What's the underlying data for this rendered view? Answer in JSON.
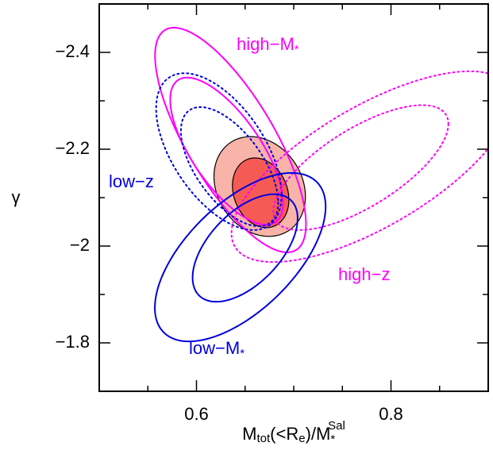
{
  "chart_data": {
    "type": "ellipse",
    "ylabel": "γ",
    "xlabel": [
      "M",
      "tot",
      "(<R",
      "e",
      ")/M",
      "*",
      "Sal"
    ],
    "xlim": [
      0.5,
      0.9
    ],
    "xticks": [
      0.6,
      0.8
    ],
    "xminorticks": [
      0.55,
      0.65,
      0.7,
      0.75,
      0.85
    ],
    "ylim": [
      -2.5,
      -1.7
    ],
    "yticks": [
      {
        "value": -2.4,
        "label": "−2.4"
      },
      {
        "value": -2.2,
        "label": "−2.2"
      },
      {
        "value": -2,
        "label": "−2"
      },
      {
        "value": -1.8,
        "label": "−1.8"
      }
    ],
    "yminorticks": [
      -2.3,
      -2.1,
      -1.9
    ],
    "series": [
      {
        "fill": "#f8b4a8",
        "color": "#000000",
        "dash": "solid",
        "contours": [
          {
            "cx": 0.665,
            "cy": -2.123,
            "rx": 0.047,
            "ry": 0.103,
            "rho": 0.2
          },
          {
            "cx": 0.666,
            "cy": -2.11,
            "rx": 0.029,
            "ry": 0.072,
            "rho": 0.2,
            "fill": "#f65a55"
          }
        ]
      },
      {
        "label": "high−M",
        "label_sub": "*",
        "color": "#ff00ff",
        "dash": "solid",
        "contours": [
          {
            "cx": 0.635,
            "cy": -2.219,
            "rx": 0.0776,
            "ry": 0.232,
            "rho": 0.75
          },
          {
            "cx": 0.631,
            "cy": -2.196,
            "rx": 0.058,
            "ry": 0.152,
            "rho": 0.7
          }
        ]
      },
      {
        "label": "low−z",
        "color": "#0000dd",
        "dash": "dotted",
        "contours": [
          {
            "cx": 0.623,
            "cy": -2.195,
            "rx": 0.0645,
            "ry": 0.162,
            "rho": 0.55
          },
          {
            "cx": 0.634,
            "cy": -2.164,
            "rx": 0.05,
            "ry": 0.123,
            "rho": 0.6
          }
        ]
      },
      {
        "label": "high−z",
        "color": "#ff00ff",
        "dash": "dotted",
        "contours": [
          {
            "cx": 0.78,
            "cy": -2.164,
            "rx": 0.144,
            "ry": 0.197,
            "rho": -0.7
          },
          {
            "cx": 0.769,
            "cy": -2.162,
            "rx": 0.09,
            "ry": 0.129,
            "rho": -0.7
          }
        ]
      },
      {
        "label": "low−M",
        "label_sub": "*",
        "color": "#0000dd",
        "dash": "solid",
        "contours": [
          {
            "cx": 0.645,
            "cy": -1.977,
            "rx": 0.0878,
            "ry": 0.174,
            "rho": -0.6
          },
          {
            "cx": 0.65,
            "cy": -1.996,
            "rx": 0.054,
            "ry": 0.111,
            "rho": -0.55
          }
        ]
      }
    ]
  }
}
